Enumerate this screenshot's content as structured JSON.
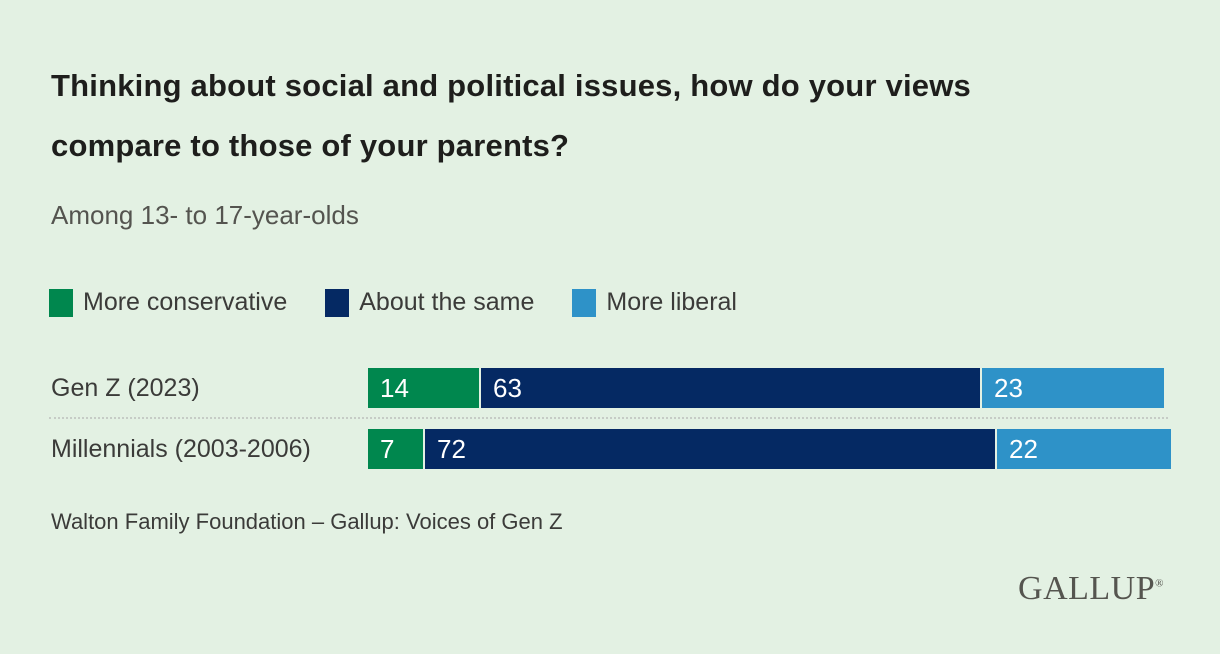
{
  "page": {
    "background_color": "#E3F1E3"
  },
  "header": {
    "title": "Thinking about social and political issues, how do your views compare to those of your parents?",
    "subtitle": "Among 13- to 17-year-olds"
  },
  "chart_data": {
    "type": "bar",
    "orientation": "horizontal",
    "stacked": true,
    "title": "Thinking about social and political issues, how do your views compare to those of your parents?",
    "subtitle": "Among 13- to 17-year-olds",
    "categories": [
      "Gen Z (2023)",
      "Millennials (2003-2006)"
    ],
    "series": [
      {
        "name": "More conservative",
        "color": "#00874E",
        "values": [
          14,
          7
        ]
      },
      {
        "name": "About the same",
        "color": "#052963",
        "values": [
          63,
          72
        ]
      },
      {
        "name": "More liberal",
        "color": "#2E92C8",
        "values": [
          23,
          22
        ]
      }
    ],
    "value_labels_shown": true,
    "value_label_color": "#FFFFFF",
    "legend_position": "top",
    "xlim": [
      0,
      101
    ],
    "grid": false
  },
  "footer": {
    "source": "Walton Family Foundation – Gallup: Voices of Gen Z",
    "brand": "GALLUP",
    "trademark": "®"
  }
}
